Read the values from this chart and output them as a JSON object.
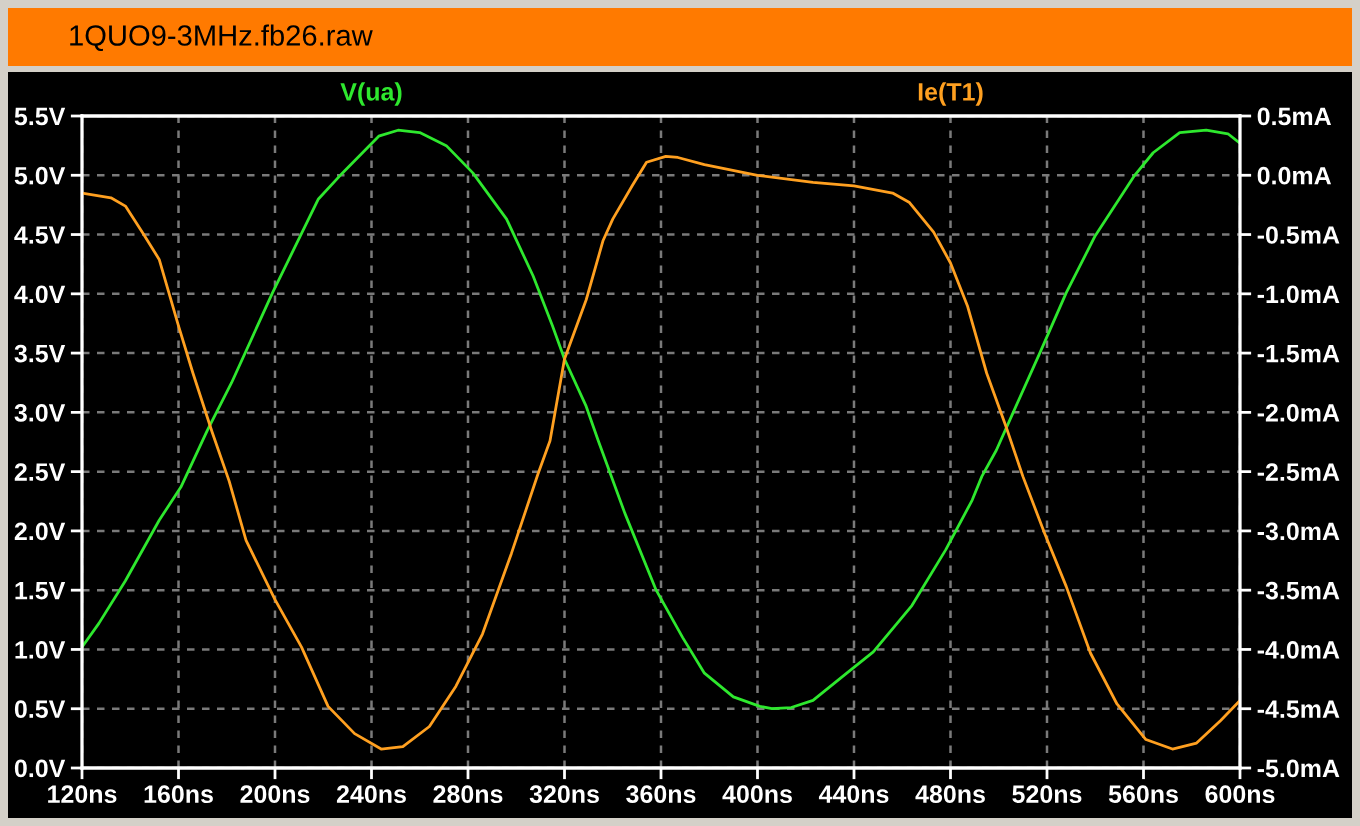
{
  "chart_data": {
    "type": "line",
    "title": "1QUO9-3MHz.fb26.raw",
    "xlim": [
      120,
      600
    ],
    "xticks": [
      {
        "value": 120,
        "label": "120ns"
      },
      {
        "value": 160,
        "label": "160ns"
      },
      {
        "value": 200,
        "label": "200ns"
      },
      {
        "value": 240,
        "label": "240ns"
      },
      {
        "value": 280,
        "label": "280ns"
      },
      {
        "value": 320,
        "label": "320ns"
      },
      {
        "value": 360,
        "label": "360ns"
      },
      {
        "value": 400,
        "label": "400ns"
      },
      {
        "value": 440,
        "label": "440ns"
      },
      {
        "value": 480,
        "label": "480ns"
      },
      {
        "value": 520,
        "label": "520ns"
      },
      {
        "value": 560,
        "label": "560ns"
      },
      {
        "value": 600,
        "label": "600ns"
      }
    ],
    "ylim": [
      0,
      5.5
    ],
    "yticks": [
      {
        "value": 0,
        "label": "0.0V"
      },
      {
        "value": 0.5,
        "label": "0.5V"
      },
      {
        "value": 1,
        "label": "1.0V"
      },
      {
        "value": 1.5,
        "label": "1.5V"
      },
      {
        "value": 2,
        "label": "2.0V"
      },
      {
        "value": 2.5,
        "label": "2.5V"
      },
      {
        "value": 3,
        "label": "3.0V"
      },
      {
        "value": 3.5,
        "label": "3.5V"
      },
      {
        "value": 4,
        "label": "4.0V"
      },
      {
        "value": 4.5,
        "label": "4.5V"
      },
      {
        "value": 5,
        "label": "5.0V"
      },
      {
        "value": 5.5,
        "label": "5.5V"
      }
    ],
    "y2lim": [
      -5.0,
      0.5
    ],
    "y2ticks": [
      {
        "value": -5.0,
        "label": "-5.0mA"
      },
      {
        "value": -4.5,
        "label": "-4.5mA"
      },
      {
        "value": -4.0,
        "label": "-4.0mA"
      },
      {
        "value": -3.5,
        "label": "-3.5mA"
      },
      {
        "value": -3.0,
        "label": "-3.0mA"
      },
      {
        "value": -2.5,
        "label": "-2.5mA"
      },
      {
        "value": -2.0,
        "label": "-2.0mA"
      },
      {
        "value": -1.5,
        "label": "-1.5mA"
      },
      {
        "value": -1.0,
        "label": "-1.0mA"
      },
      {
        "value": -0.5,
        "label": "-0.5mA"
      },
      {
        "value": 0.0,
        "label": "0.0mA"
      },
      {
        "value": 0.5,
        "label": "0.5mA"
      }
    ],
    "grid": true,
    "legend": "top",
    "line_style": "solid",
    "series": [
      {
        "name": "V(ua)",
        "color": "#2ee82e",
        "x": [
          120,
          127,
          138,
          152,
          161,
          172,
          182,
          199,
          218,
          228,
          243,
          251,
          260,
          271,
          282,
          296,
          307,
          315,
          320,
          329,
          334,
          345,
          358,
          369,
          378,
          390,
          401,
          406,
          414,
          423,
          437,
          448,
          464,
          478,
          489,
          493,
          499,
          506,
          517,
          528,
          540,
          556,
          564,
          575,
          586,
          595,
          600
        ],
        "values": [
          1.02,
          1.22,
          1.58,
          2.09,
          2.37,
          2.85,
          3.25,
          4.01,
          4.8,
          5.02,
          5.33,
          5.38,
          5.36,
          5.25,
          5.02,
          4.63,
          4.15,
          3.73,
          3.45,
          3.05,
          2.76,
          2.15,
          1.5,
          1.1,
          0.8,
          0.6,
          0.52,
          0.5,
          0.51,
          0.57,
          0.8,
          0.98,
          1.37,
          1.84,
          2.26,
          2.46,
          2.68,
          3.0,
          3.5,
          4.01,
          4.49,
          4.99,
          5.19,
          5.36,
          5.38,
          5.35,
          5.27
        ]
      },
      {
        "name": "Ie(T1)",
        "color": "#ffa020",
        "axis": "y2",
        "x": [
          120,
          132,
          138,
          145,
          152,
          160,
          166,
          174,
          181,
          188,
          200,
          211,
          222,
          233,
          244,
          253,
          264,
          275,
          286,
          298,
          309,
          314,
          320,
          329,
          336,
          340,
          348,
          354,
          362,
          367,
          378,
          400,
          423,
          440,
          456,
          463,
          473,
          480,
          487,
          495,
          503,
          510,
          519,
          528,
          538,
          549,
          561,
          572,
          582,
          592,
          600
        ],
        "values": [
          -0.15,
          -0.19,
          -0.26,
          -0.48,
          -0.71,
          -1.27,
          -1.67,
          -2.17,
          -2.58,
          -3.08,
          -3.58,
          -3.98,
          -4.48,
          -4.71,
          -4.84,
          -4.82,
          -4.65,
          -4.31,
          -3.87,
          -3.19,
          -2.52,
          -2.24,
          -1.55,
          -1.05,
          -0.55,
          -0.37,
          -0.09,
          0.11,
          0.16,
          0.15,
          0.09,
          0.0,
          -0.06,
          -0.09,
          -0.15,
          -0.23,
          -0.48,
          -0.74,
          -1.1,
          -1.67,
          -2.12,
          -2.54,
          -3.02,
          -3.47,
          -4.03,
          -4.46,
          -4.76,
          -4.84,
          -4.79,
          -4.6,
          -4.43
        ]
      }
    ]
  }
}
